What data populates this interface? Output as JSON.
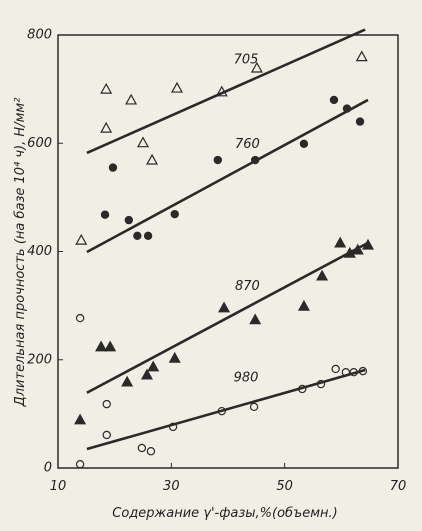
{
  "chart_data": {
    "type": "scatter",
    "x_label": "Содержание γ'-фазы,%(объемн.)",
    "y_label": "Длительная прочность (на базе 10⁴ ч), Н/мм²",
    "xlim": [
      10,
      70
    ],
    "xticks": [
      10,
      30,
      50,
      70
    ],
    "ylim": [
      0,
      800
    ],
    "yticks": [
      0,
      200,
      400,
      600,
      800
    ],
    "color": "#2a2a2a",
    "series": [
      {
        "name": "705",
        "marker": "triangle",
        "filled": false,
        "x": [
          14.1,
          18.5,
          18.5,
          22.9,
          25,
          26.6,
          31,
          38.9,
          45.1,
          63.6
        ],
        "values": [
          421,
          700,
          628,
          680,
          601,
          569,
          702,
          695,
          739,
          760
        ],
        "line": {
          "x": [
            15.1,
            64.2
          ],
          "values": [
            582,
            810
          ]
        }
      },
      {
        "name": "760",
        "marker": "circle",
        "filled": true,
        "x": [
          18.3,
          19.7,
          22.5,
          24,
          25.9,
          30.6,
          38.2,
          44.8,
          53.4,
          58.7,
          61,
          63.3
        ],
        "values": [
          468,
          555,
          458,
          429,
          429,
          469,
          569,
          569,
          599,
          680,
          664,
          640
        ],
        "line": {
          "x": [
            15.1,
            64.7
          ],
          "values": [
            399,
            680
          ]
        }
      },
      {
        "name": "870",
        "marker": "triangle",
        "filled": true,
        "x": [
          13.9,
          17.6,
          19.2,
          22.2,
          25.7,
          26.8,
          30.6,
          39.3,
          44.8,
          53.4,
          56.6,
          59.8,
          61.5,
          62.9,
          64.7
        ],
        "values": [
          89,
          224,
          224,
          159,
          172,
          187,
          203,
          296,
          274,
          299,
          355,
          416,
          397,
          403,
          412
        ],
        "line": {
          "x": [
            15.1,
            64.7
          ],
          "values": [
            139,
            416
          ]
        }
      },
      {
        "name": "980",
        "marker": "circle",
        "filled": false,
        "x": [
          13.9,
          18.6,
          18.6,
          13.9,
          24.8,
          26.4,
          30.3,
          38.9,
          44.6,
          53.1,
          56.4,
          59,
          60.8,
          62.2,
          63.8
        ],
        "values": [
          277,
          118,
          61,
          7,
          37,
          31,
          76,
          105,
          113,
          146,
          155,
          183,
          177,
          177,
          179
        ],
        "line": {
          "x": [
            15.1,
            64.2
          ],
          "values": [
            35,
            181
          ]
        }
      }
    ]
  }
}
